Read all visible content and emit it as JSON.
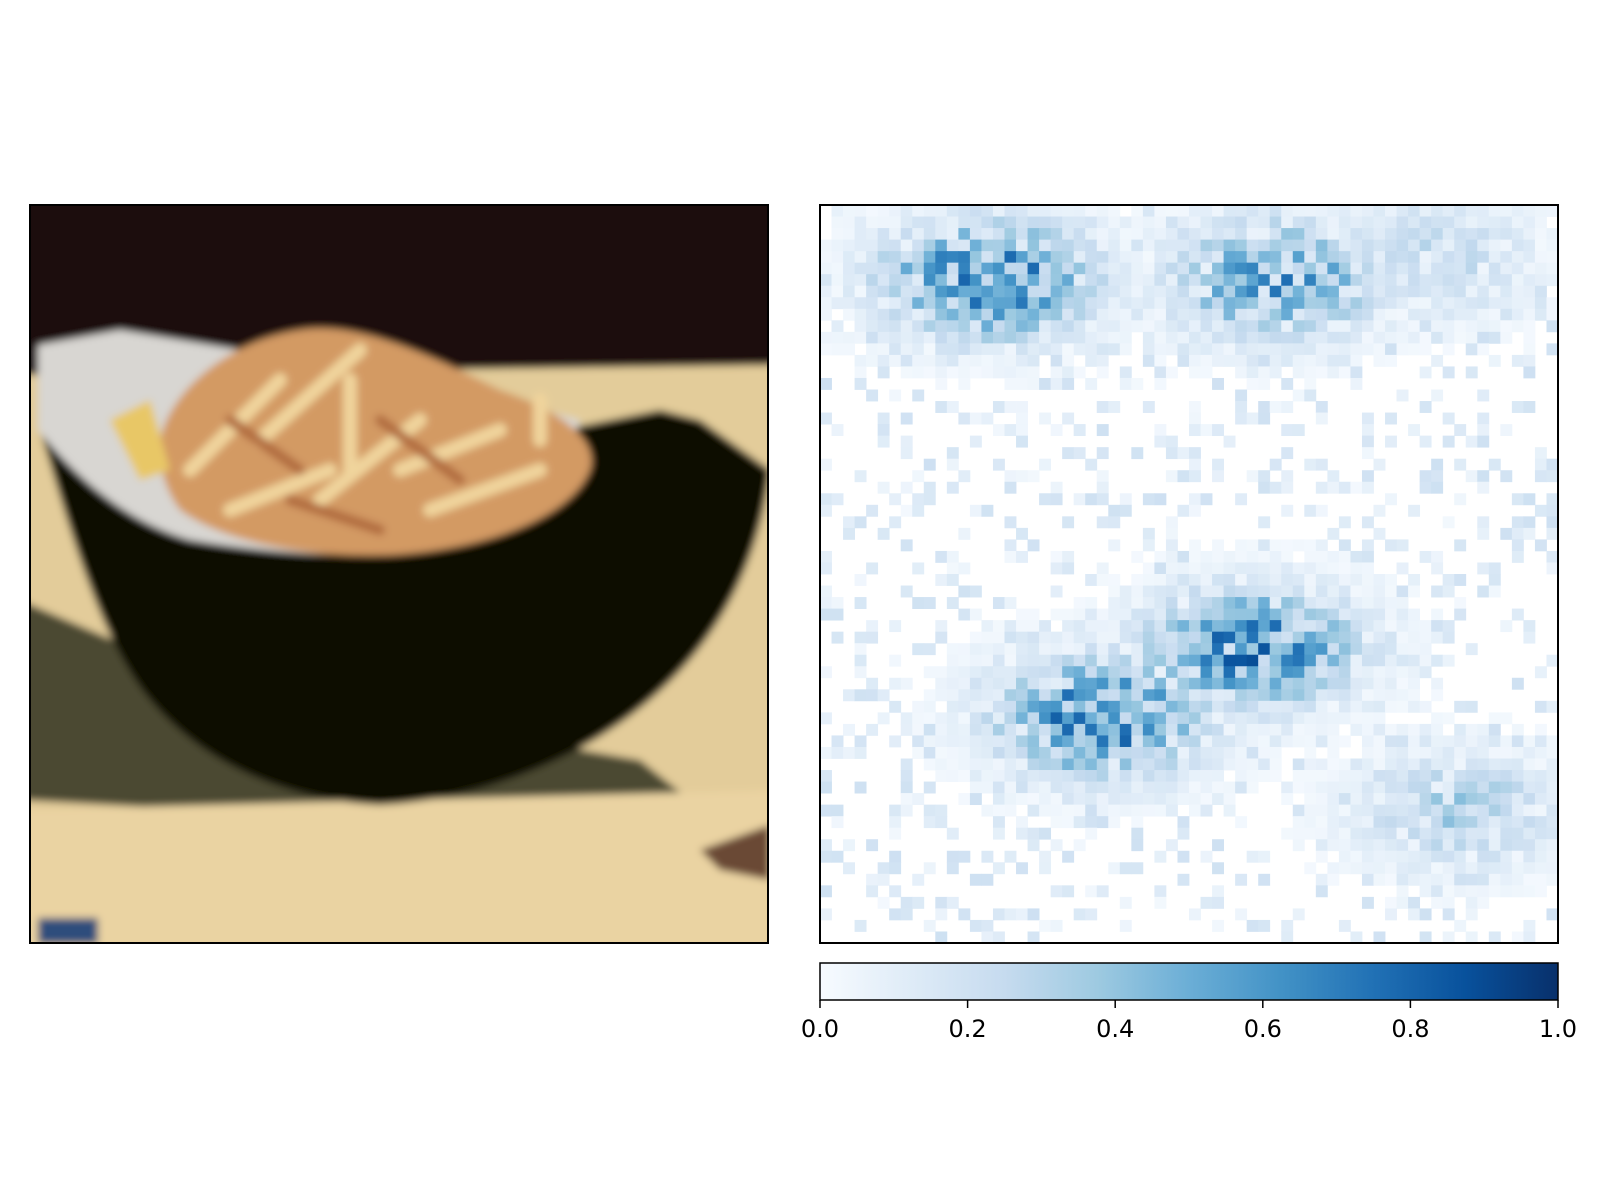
{
  "figure": {
    "panels": [
      "input-image",
      "saliency-heatmap"
    ]
  },
  "input_image": {
    "subject": "bowl of french fries",
    "colors": {
      "background": "#1a0e08",
      "table": "#e3cc9a",
      "bowl": "#0c0906",
      "liner": "#d8d6d2",
      "fries": "#d39a64"
    }
  },
  "chart_data": {
    "type": "heatmap",
    "title": "",
    "xlabel": "",
    "ylabel": "",
    "colormap": "Blues",
    "grid_size": [
      64,
      64
    ],
    "vmin": 0.0,
    "vmax": 1.0,
    "axes_ticks_visible": false,
    "colorbar": {
      "orientation": "horizontal",
      "placement": "below",
      "ticks": [
        0.0,
        0.2,
        0.4,
        0.6,
        0.8,
        1.0
      ],
      "tick_labels": [
        "0.0",
        "0.2",
        "0.4",
        "0.6",
        "0.8",
        "1.0"
      ]
    },
    "hotspots": [
      {
        "region": "upper-left",
        "col": 14,
        "row": 6,
        "peak": 1.0
      },
      {
        "region": "upper-middle-right",
        "col": 39,
        "row": 6,
        "peak": 0.8
      },
      {
        "region": "upper-right",
        "col": 53,
        "row": 4,
        "peak": 0.35
      },
      {
        "region": "lower-left",
        "col": 24,
        "row": 44,
        "peak": 1.0
      },
      {
        "region": "lower-middle",
        "col": 37,
        "row": 38,
        "peak": 0.95
      },
      {
        "region": "lower-right",
        "col": 55,
        "row": 52,
        "peak": 0.45
      }
    ]
  }
}
